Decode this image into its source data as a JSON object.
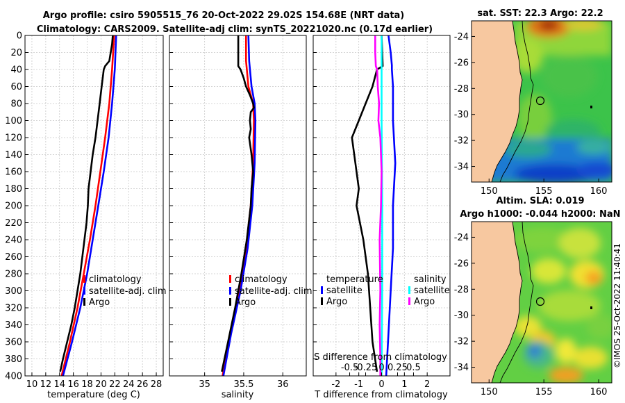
{
  "figure": {
    "title_line1": "Argo profile: csiro 5905515_76 20-Oct-2022 29.02S 154.68E (NRT data)",
    "title_line2": "Climatology: CARS2009. Satellite-adj clim: synTS_20221020.nc (0.17d earlier)",
    "watermark": "©IMOS 25-Oct-2022 11:40:41"
  },
  "colors": {
    "climatology": "#ff0000",
    "satellite": "#0000ff",
    "argo": "#000000",
    "salinity_sat": "#00ffff",
    "salinity_argo": "#ff00ff",
    "land": "#f7c8a0",
    "grid": "#c8c8c8"
  },
  "chart_data": [
    {
      "type": "line",
      "name": "temperature-profile",
      "xlabel": "temperature (deg C)",
      "ylabel": "depth",
      "xlim": [
        9,
        29
      ],
      "ylim": [
        400,
        0
      ],
      "xticks": [
        10,
        12,
        14,
        16,
        18,
        20,
        22,
        24,
        26,
        28
      ],
      "yticks": [
        0,
        20,
        40,
        60,
        80,
        100,
        120,
        140,
        160,
        180,
        200,
        220,
        240,
        260,
        280,
        300,
        320,
        340,
        360,
        380,
        400
      ],
      "grid": true,
      "legend": [
        "climatology",
        "satellite-adj. clim",
        "Argo"
      ],
      "series": [
        {
          "name": "climatology",
          "color": "#ff0000",
          "depth": [
            0,
            40,
            80,
            120,
            160,
            200,
            240,
            280,
            320,
            360,
            400
          ],
          "values": [
            21.9,
            21.6,
            21.2,
            20.6,
            19.9,
            19.2,
            18.4,
            17.5,
            16.6,
            15.5,
            14.3
          ]
        },
        {
          "name": "satellite-adj. clim",
          "color": "#0000ff",
          "depth": [
            0,
            40,
            80,
            120,
            160,
            200,
            240,
            280,
            320,
            360,
            400
          ],
          "values": [
            22.2,
            22.0,
            21.6,
            21.1,
            20.4,
            19.6,
            18.8,
            18.0,
            17.0,
            15.8,
            14.5
          ]
        },
        {
          "name": "Argo",
          "color": "#000000",
          "depth": [
            0,
            10,
            20,
            30,
            36,
            40,
            60,
            80,
            100,
            120,
            140,
            160,
            180,
            200,
            220,
            240,
            260,
            280,
            300,
            320,
            340,
            360,
            380,
            395
          ],
          "values": [
            21.7,
            21.6,
            21.4,
            21.2,
            20.6,
            20.4,
            20.1,
            19.8,
            19.5,
            19.2,
            18.8,
            18.5,
            18.2,
            18.1,
            17.9,
            17.6,
            17.3,
            17.0,
            16.6,
            16.2,
            15.7,
            15.1,
            14.5,
            14.1
          ]
        }
      ]
    },
    {
      "type": "line",
      "name": "salinity-profile",
      "xlabel": "salinity",
      "xlim": [
        34.55,
        36.3
      ],
      "ylim": [
        400,
        0
      ],
      "xticks": [
        35,
        35.5,
        36
      ],
      "grid": true,
      "legend": [
        "climatology",
        "satellite-adj. clim",
        "Argo"
      ],
      "series": [
        {
          "name": "climatology",
          "color": "#ff0000",
          "depth": [
            0,
            30,
            60,
            80,
            100,
            150,
            200,
            250,
            300,
            350,
            400
          ],
          "values": [
            35.53,
            35.53,
            35.56,
            35.62,
            35.63,
            35.62,
            35.59,
            35.53,
            35.44,
            35.33,
            35.23
          ]
        },
        {
          "name": "satellite-adj. clim",
          "color": "#0000ff",
          "depth": [
            0,
            30,
            60,
            80,
            100,
            150,
            200,
            250,
            300,
            350,
            400
          ],
          "values": [
            35.56,
            35.57,
            35.6,
            35.64,
            35.65,
            35.64,
            35.61,
            35.55,
            35.46,
            35.34,
            35.24
          ]
        },
        {
          "name": "Argo",
          "color": "#000000",
          "depth": [
            0,
            36,
            40,
            50,
            60,
            70,
            80,
            85,
            90,
            100,
            110,
            120,
            140,
            160,
            180,
            200,
            240,
            280,
            320,
            360,
            395
          ],
          "values": [
            35.43,
            35.43,
            35.46,
            35.5,
            35.53,
            35.58,
            35.62,
            35.63,
            35.59,
            35.58,
            35.59,
            35.57,
            35.6,
            35.62,
            35.6,
            35.59,
            35.54,
            35.47,
            35.39,
            35.3,
            35.22
          ]
        }
      ]
    },
    {
      "type": "line",
      "name": "difference-profile",
      "xlabel": "T difference from climatology",
      "xlabel_top": "S difference from climatology",
      "xlim": [
        -3,
        3
      ],
      "ylim": [
        400,
        0
      ],
      "xticks": [
        -2,
        -1,
        0,
        1,
        2
      ],
      "xticklabels": [
        "-2",
        "-1",
        "0",
        "1",
        "2"
      ],
      "s_xticks": [
        -0.5,
        -0.25,
        0,
        0.25,
        0.5
      ],
      "s_xticklabels": [
        "-0.5",
        "-0.25",
        "0",
        "0.25",
        "0.5"
      ],
      "grid": true,
      "legend_temperature": [
        "temperature",
        "satellite",
        "Argo"
      ],
      "legend_salinity": [
        "salinity",
        "satellite",
        "Argo"
      ],
      "series": [
        {
          "name": "temperature satellite",
          "color": "#0000ff",
          "depth": [
            0,
            20,
            35,
            40,
            60,
            100,
            150,
            200,
            250,
            300,
            350,
            400
          ],
          "values": [
            0.3,
            0.4,
            0.45,
            0.45,
            0.5,
            0.5,
            0.6,
            0.5,
            0.5,
            0.4,
            0.3,
            0.2
          ]
        },
        {
          "name": "temperature Argo",
          "color": "#000000",
          "depth": [
            0,
            36,
            40,
            60,
            80,
            100,
            120,
            140,
            160,
            180,
            200,
            240,
            280,
            320,
            360,
            395
          ],
          "values": [
            0.0,
            0.05,
            -0.2,
            -0.4,
            -0.7,
            -1.0,
            -1.3,
            -1.2,
            -1.1,
            -1.0,
            -1.1,
            -0.8,
            -0.6,
            -0.5,
            -0.4,
            -0.2
          ]
        },
        {
          "name": "salinity satellite",
          "color": "#00ffff",
          "depth": [
            0,
            50,
            100,
            200,
            300,
            400
          ],
          "values": [
            0.0,
            0.0,
            0.0,
            0.01,
            0.01,
            0.0
          ]
        },
        {
          "name": "salinity Argo",
          "color": "#ff00ff",
          "depth": [
            0,
            20,
            36,
            40,
            60,
            80,
            100,
            120,
            160,
            200,
            240,
            300,
            340,
            380,
            400
          ],
          "values": [
            -0.1,
            -0.1,
            -0.09,
            -0.07,
            -0.06,
            -0.04,
            -0.05,
            -0.02,
            0.0,
            -0.01,
            -0.03,
            -0.02,
            -0.03,
            -0.02,
            -0.02
          ]
        }
      ]
    },
    {
      "type": "heatmap",
      "name": "sst-map",
      "title": "sat. SST: 22.3 Argo: 22.2",
      "xticks": [
        150,
        155,
        160
      ],
      "yticks": [
        -24,
        -26,
        -28,
        -30,
        -32,
        -34
      ],
      "xlim": [
        148.4,
        161.2
      ],
      "ylim": [
        -35.2,
        -22.8
      ],
      "argo_position": {
        "lon": 154.68,
        "lat": -29.02
      }
    },
    {
      "type": "heatmap",
      "name": "sla-map",
      "title_line1": "Altim. SLA: 0.019",
      "title_line2": "Argo h1000: -0.044 h2000: NaN",
      "xticks": [
        150,
        155,
        160
      ],
      "yticks": [
        -24,
        -26,
        -28,
        -30,
        -32,
        -34
      ],
      "xlim": [
        148.4,
        161.2
      ],
      "ylim": [
        -35.2,
        -22.8
      ],
      "argo_position": {
        "lon": 154.68,
        "lat": -29.02
      }
    }
  ]
}
